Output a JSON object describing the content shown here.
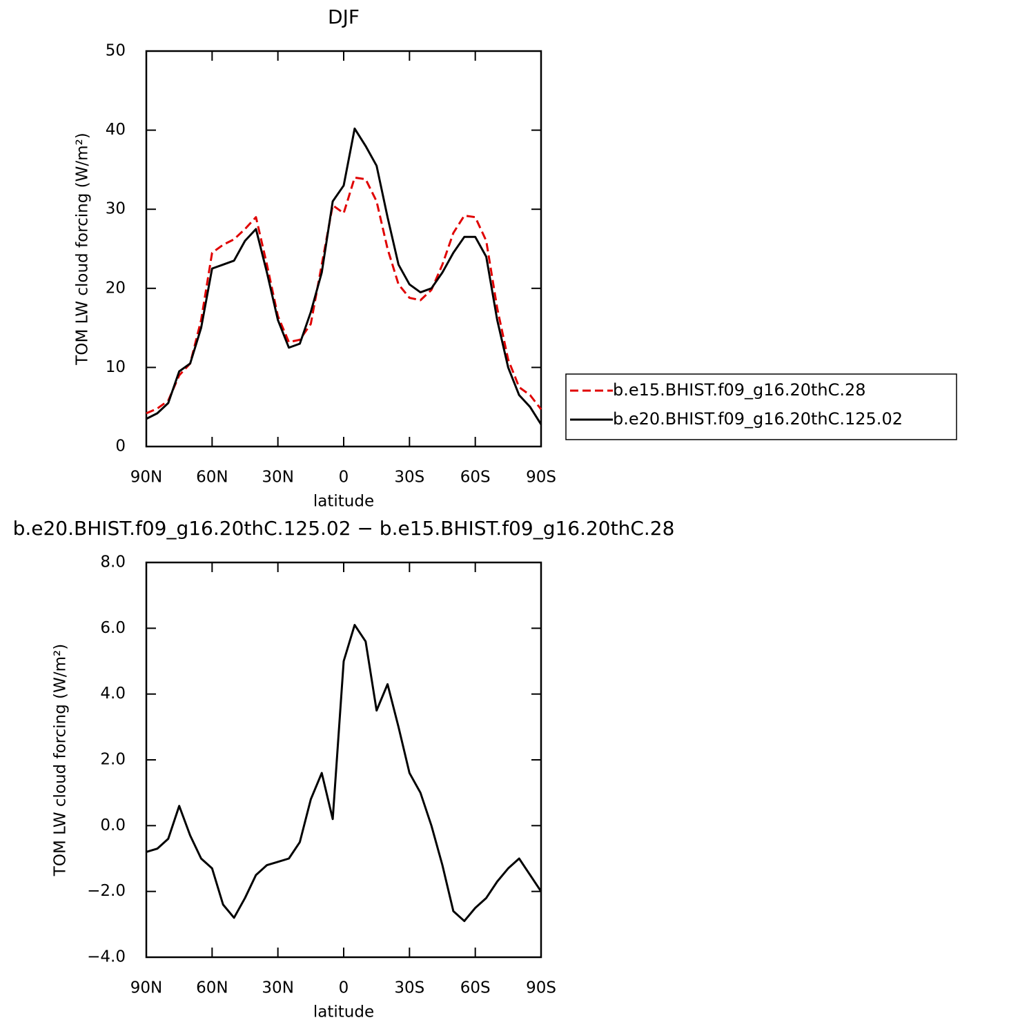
{
  "chart_data": [
    {
      "type": "line",
      "title": "DJF",
      "xlabel": "latitude",
      "ylabel": "TOM LW cloud forcing (W/m²)",
      "x": [
        90,
        85,
        80,
        75,
        70,
        65,
        60,
        55,
        50,
        45,
        40,
        35,
        30,
        25,
        20,
        15,
        10,
        5,
        0,
        -5,
        -10,
        -15,
        -20,
        -25,
        -30,
        -35,
        -40,
        -45,
        -50,
        -55,
        -60,
        -65,
        -70,
        -75,
        -80,
        -85,
        -90
      ],
      "series": [
        {
          "name": "b.e15.BHIST.f09_g16.20thC.28",
          "color": "#e00000",
          "dash": true,
          "values": [
            4.2,
            4.8,
            5.8,
            9,
            10.5,
            16,
            24.5,
            25.5,
            26.2,
            27.5,
            29,
            23,
            16.5,
            13.2,
            13.5,
            15.5,
            23,
            30.5,
            29.5,
            34,
            33.8,
            31,
            25,
            20.5,
            18.8,
            18.5,
            19.8,
            23,
            27,
            29.2,
            29,
            26,
            17.5,
            11,
            7.5,
            6.5,
            4.7
          ]
        },
        {
          "name": "b.e20.BHIST.f09_g16.20thC.125.02",
          "color": "#000000",
          "dash": false,
          "values": [
            3.5,
            4.2,
            5.5,
            9.5,
            10.5,
            15,
            22.5,
            23,
            23.5,
            26,
            27.5,
            22,
            16,
            12.5,
            13,
            17,
            22,
            31,
            33,
            40.2,
            38,
            35.5,
            29,
            23,
            20.5,
            19.5,
            20,
            22,
            24.5,
            26.5,
            26.5,
            24,
            16,
            10,
            6.5,
            5,
            2.8
          ]
        }
      ],
      "xlim": [
        90,
        -90
      ],
      "xticks": [
        {
          "value": 90,
          "label": "90N"
        },
        {
          "value": 60,
          "label": "60N"
        },
        {
          "value": 30,
          "label": "30N"
        },
        0,
        {
          "value": -30,
          "label": "30S"
        },
        {
          "value": -60,
          "label": "60S"
        },
        {
          "value": -90,
          "label": "90S"
        }
      ],
      "ylim": [
        0,
        50
      ],
      "yticks": [
        0,
        10,
        20,
        30,
        40,
        50
      ],
      "legend": "right"
    },
    {
      "type": "line",
      "title": "b.e20.BHIST.f09_g16.20thC.125.02 − b.e15.BHIST.f09_g16.20thC.28",
      "xlabel": "latitude",
      "ylabel": "TOM LW cloud forcing (W/m²)",
      "x": [
        90,
        85,
        80,
        75,
        70,
        65,
        60,
        55,
        50,
        45,
        40,
        35,
        30,
        25,
        20,
        15,
        10,
        5,
        0,
        -5,
        -10,
        -15,
        -20,
        -25,
        -30,
        -35,
        -40,
        -45,
        -50,
        -55,
        -60,
        -65,
        -70,
        -75,
        -80,
        -85,
        -90
      ],
      "series": [
        {
          "color": "#000000",
          "dash": false,
          "values": [
            -0.8,
            -0.7,
            -0.4,
            0.6,
            -0.3,
            -1.0,
            -1.3,
            -2.4,
            -2.8,
            -2.2,
            -1.5,
            -1.2,
            -1.1,
            -1.0,
            -0.5,
            0.8,
            1.6,
            0.2,
            5.0,
            6.1,
            5.6,
            3.5,
            4.3,
            3.0,
            1.6,
            1.0,
            0.0,
            -1.2,
            -2.6,
            -2.9,
            -2.5,
            -2.2,
            -1.7,
            -1.3,
            -1.0,
            -1.5,
            -2.0
          ]
        }
      ],
      "xlim": [
        90,
        -90
      ],
      "xticks": [
        {
          "value": 90,
          "label": "90N"
        },
        {
          "value": 60,
          "label": "60N"
        },
        {
          "value": 30,
          "label": "30N"
        },
        0,
        {
          "value": -30,
          "label": "30S"
        },
        {
          "value": -60,
          "label": "60S"
        },
        {
          "value": -90,
          "label": "90S"
        }
      ],
      "ylim": [
        -4,
        8
      ],
      "yticks": [
        {
          "value": -4,
          "label": "−4.0"
        },
        {
          "value": -2,
          "label": "−2.0"
        },
        {
          "value": 0,
          "label": "0.0"
        },
        {
          "value": 2,
          "label": "2.0"
        },
        {
          "value": 4,
          "label": "4.0"
        },
        {
          "value": 6,
          "label": "6.0"
        },
        {
          "value": 8,
          "label": "8.0"
        }
      ]
    }
  ]
}
